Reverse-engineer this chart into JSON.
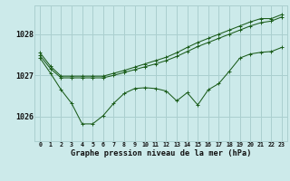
{
  "title": "Graphe pression niveau de la mer (hPa)",
  "bg_color": "#cceaea",
  "grid_color": "#aacfcf",
  "line_color": "#1a5c1a",
  "x_labels": [
    "0",
    "1",
    "2",
    "3",
    "4",
    "5",
    "6",
    "7",
    "8",
    "9",
    "10",
    "11",
    "12",
    "13",
    "14",
    "15",
    "16",
    "17",
    "18",
    "19",
    "20",
    "21",
    "22",
    "23"
  ],
  "ylim": [
    1025.4,
    1028.7
  ],
  "yticks": [
    1026,
    1027,
    1028
  ],
  "s1": [
    1027.55,
    1027.22,
    1026.98,
    1026.98,
    1026.98,
    1026.98,
    1026.98,
    1027.05,
    1027.12,
    1027.2,
    1027.28,
    1027.36,
    1027.44,
    1027.55,
    1027.68,
    1027.8,
    1027.9,
    1028.0,
    1028.1,
    1028.2,
    1028.3,
    1028.38,
    1028.38,
    1028.48
  ],
  "s2": [
    1027.48,
    1027.16,
    1026.94,
    1026.94,
    1026.94,
    1026.94,
    1026.94,
    1027.0,
    1027.07,
    1027.14,
    1027.21,
    1027.28,
    1027.36,
    1027.46,
    1027.58,
    1027.7,
    1027.8,
    1027.9,
    1028.0,
    1028.1,
    1028.2,
    1028.28,
    1028.32,
    1028.42
  ],
  "s3": [
    1027.42,
    1027.05,
    1026.65,
    1026.32,
    1025.82,
    1025.82,
    1026.02,
    1026.32,
    1026.56,
    1026.68,
    1026.7,
    1026.68,
    1026.62,
    1026.38,
    1026.58,
    1026.28,
    1026.65,
    1026.8,
    1027.1,
    1027.42,
    1027.52,
    1027.56,
    1027.58,
    1027.68
  ]
}
